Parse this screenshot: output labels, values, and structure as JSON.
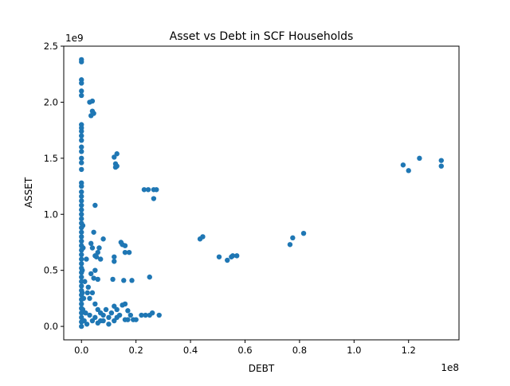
{
  "chart_data": {
    "type": "scatter",
    "title": "Asset vs Debt in SCF Households",
    "xlabel": "DEBT",
    "ylabel": "ASSET",
    "x_scale_label": "1e8",
    "y_scale_label": "1e9",
    "xlim": [
      -0.065,
      1.385
    ],
    "ylim": [
      -0.12,
      2.5
    ],
    "x_ticks": [
      "0.0",
      "0.2",
      "0.4",
      "0.6",
      "0.8",
      "1.0",
      "1.2"
    ],
    "y_ticks": [
      "0.0",
      "0.5",
      "1.0",
      "1.5",
      "2.0",
      "2.5"
    ],
    "x_tick_values": [
      0,
      0.2,
      0.4,
      0.6,
      0.8,
      1.0,
      1.2
    ],
    "y_tick_values": [
      0,
      0.5,
      1.0,
      1.5,
      2.0,
      2.5
    ],
    "grid": false,
    "marker_color": "#1f77b4",
    "units_note_x": "x values in units of 1e8",
    "units_note_y": "y values in units of 1e9",
    "series": [
      {
        "points": [
          [
            0.0,
            2.38
          ],
          [
            0.0,
            2.36
          ],
          [
            0.0,
            2.2
          ],
          [
            0.0,
            2.17
          ],
          [
            0.0,
            2.1
          ],
          [
            0.0,
            2.06
          ],
          [
            0.0,
            1.8
          ],
          [
            0.0,
            1.77
          ],
          [
            0.0,
            1.74
          ],
          [
            0.0,
            1.7
          ],
          [
            0.0,
            1.66
          ],
          [
            0.0,
            1.6
          ],
          [
            0.0,
            1.56
          ],
          [
            0.0,
            1.5
          ],
          [
            0.0,
            1.46
          ],
          [
            0.0,
            1.4
          ],
          [
            0.0,
            1.28
          ],
          [
            0.0,
            1.25
          ],
          [
            0.0,
            1.2
          ],
          [
            0.0,
            1.16
          ],
          [
            0.0,
            1.12
          ],
          [
            0.0,
            1.08
          ],
          [
            0.0,
            1.04
          ],
          [
            0.0,
            1.0
          ],
          [
            0.0,
            0.96
          ],
          [
            0.0,
            0.92
          ],
          [
            0.0,
            0.88
          ],
          [
            0.0,
            0.84
          ],
          [
            0.0,
            0.8
          ],
          [
            0.0,
            0.76
          ],
          [
            0.0,
            0.72
          ],
          [
            0.0,
            0.68
          ],
          [
            0.0,
            0.64
          ],
          [
            0.0,
            0.6
          ],
          [
            0.0,
            0.56
          ],
          [
            0.0,
            0.52
          ],
          [
            0.0,
            0.48
          ],
          [
            0.0,
            0.44
          ],
          [
            0.0,
            0.4
          ],
          [
            0.0,
            0.36
          ],
          [
            0.0,
            0.32
          ],
          [
            0.0,
            0.28
          ],
          [
            0.0,
            0.24
          ],
          [
            0.0,
            0.2
          ],
          [
            0.0,
            0.16
          ],
          [
            0.0,
            0.12
          ],
          [
            0.0,
            0.08
          ],
          [
            0.0,
            0.04
          ],
          [
            0.0,
            0.0
          ],
          [
            0.003,
            0.3
          ],
          [
            0.003,
            0.5
          ],
          [
            0.005,
            0.9
          ],
          [
            0.005,
            0.15
          ],
          [
            0.006,
            0.7
          ],
          [
            0.008,
            0.25
          ],
          [
            0.01,
            0.05
          ],
          [
            0.012,
            0.4
          ],
          [
            0.015,
            0.12
          ],
          [
            0.018,
            0.6
          ],
          [
            0.02,
            0.02
          ],
          [
            0.022,
            0.3
          ],
          [
            0.03,
            2.0
          ],
          [
            0.04,
            2.01
          ],
          [
            0.04,
            1.92
          ],
          [
            0.035,
            1.88
          ],
          [
            0.045,
            1.9
          ],
          [
            0.05,
            1.08
          ],
          [
            0.045,
            0.84
          ],
          [
            0.035,
            0.74
          ],
          [
            0.04,
            0.7
          ],
          [
            0.05,
            0.63
          ],
          [
            0.055,
            0.62
          ],
          [
            0.06,
            0.66
          ],
          [
            0.065,
            0.7
          ],
          [
            0.05,
            0.5
          ],
          [
            0.035,
            0.47
          ],
          [
            0.06,
            0.42
          ],
          [
            0.045,
            0.43
          ],
          [
            0.04,
            0.3
          ],
          [
            0.03,
            0.25
          ],
          [
            0.05,
            0.2
          ],
          [
            0.06,
            0.15
          ],
          [
            0.07,
            0.12
          ],
          [
            0.025,
            0.35
          ],
          [
            0.03,
            0.1
          ],
          [
            0.04,
            0.05
          ],
          [
            0.05,
            0.08
          ],
          [
            0.06,
            0.03
          ],
          [
            0.07,
            0.05
          ],
          [
            0.08,
            0.1
          ],
          [
            0.09,
            0.15
          ],
          [
            0.08,
            0.78
          ],
          [
            0.07,
            0.6
          ],
          [
            0.08,
            0.05
          ],
          [
            0.1,
            0.02
          ],
          [
            0.1,
            0.08
          ],
          [
            0.11,
            0.12
          ],
          [
            0.12,
            0.18
          ],
          [
            0.13,
            0.15
          ],
          [
            0.14,
            0.1
          ],
          [
            0.15,
            0.19
          ],
          [
            0.16,
            0.2
          ],
          [
            0.17,
            0.14
          ],
          [
            0.18,
            0.1
          ],
          [
            0.19,
            0.06
          ],
          [
            0.2,
            0.06
          ],
          [
            0.16,
            0.06
          ],
          [
            0.17,
            0.06
          ],
          [
            0.12,
            0.05
          ],
          [
            0.13,
            0.08
          ],
          [
            0.12,
            0.58
          ],
          [
            0.12,
            0.62
          ],
          [
            0.115,
            0.42
          ],
          [
            0.145,
            0.75
          ],
          [
            0.15,
            0.73
          ],
          [
            0.16,
            0.72
          ],
          [
            0.16,
            0.66
          ],
          [
            0.175,
            0.66
          ],
          [
            0.155,
            0.41
          ],
          [
            0.185,
            0.41
          ],
          [
            0.12,
            1.51
          ],
          [
            0.13,
            1.54
          ],
          [
            0.125,
            1.45
          ],
          [
            0.13,
            1.43
          ],
          [
            0.125,
            1.42
          ],
          [
            0.23,
            1.22
          ],
          [
            0.245,
            1.22
          ],
          [
            0.265,
            1.22
          ],
          [
            0.275,
            1.22
          ],
          [
            0.265,
            1.14
          ],
          [
            0.25,
            0.44
          ],
          [
            0.22,
            0.1
          ],
          [
            0.235,
            0.1
          ],
          [
            0.25,
            0.1
          ],
          [
            0.26,
            0.12
          ],
          [
            0.285,
            0.1
          ],
          [
            0.435,
            0.78
          ],
          [
            0.445,
            0.8
          ],
          [
            0.505,
            0.62
          ],
          [
            0.535,
            0.59
          ],
          [
            0.55,
            0.62
          ],
          [
            0.555,
            0.63
          ],
          [
            0.57,
            0.63
          ],
          [
            0.765,
            0.73
          ],
          [
            0.775,
            0.79
          ],
          [
            0.815,
            0.83
          ],
          [
            1.18,
            1.44
          ],
          [
            1.2,
            1.39
          ],
          [
            1.24,
            1.5
          ],
          [
            1.32,
            1.48
          ],
          [
            1.32,
            1.43
          ]
        ]
      }
    ]
  }
}
